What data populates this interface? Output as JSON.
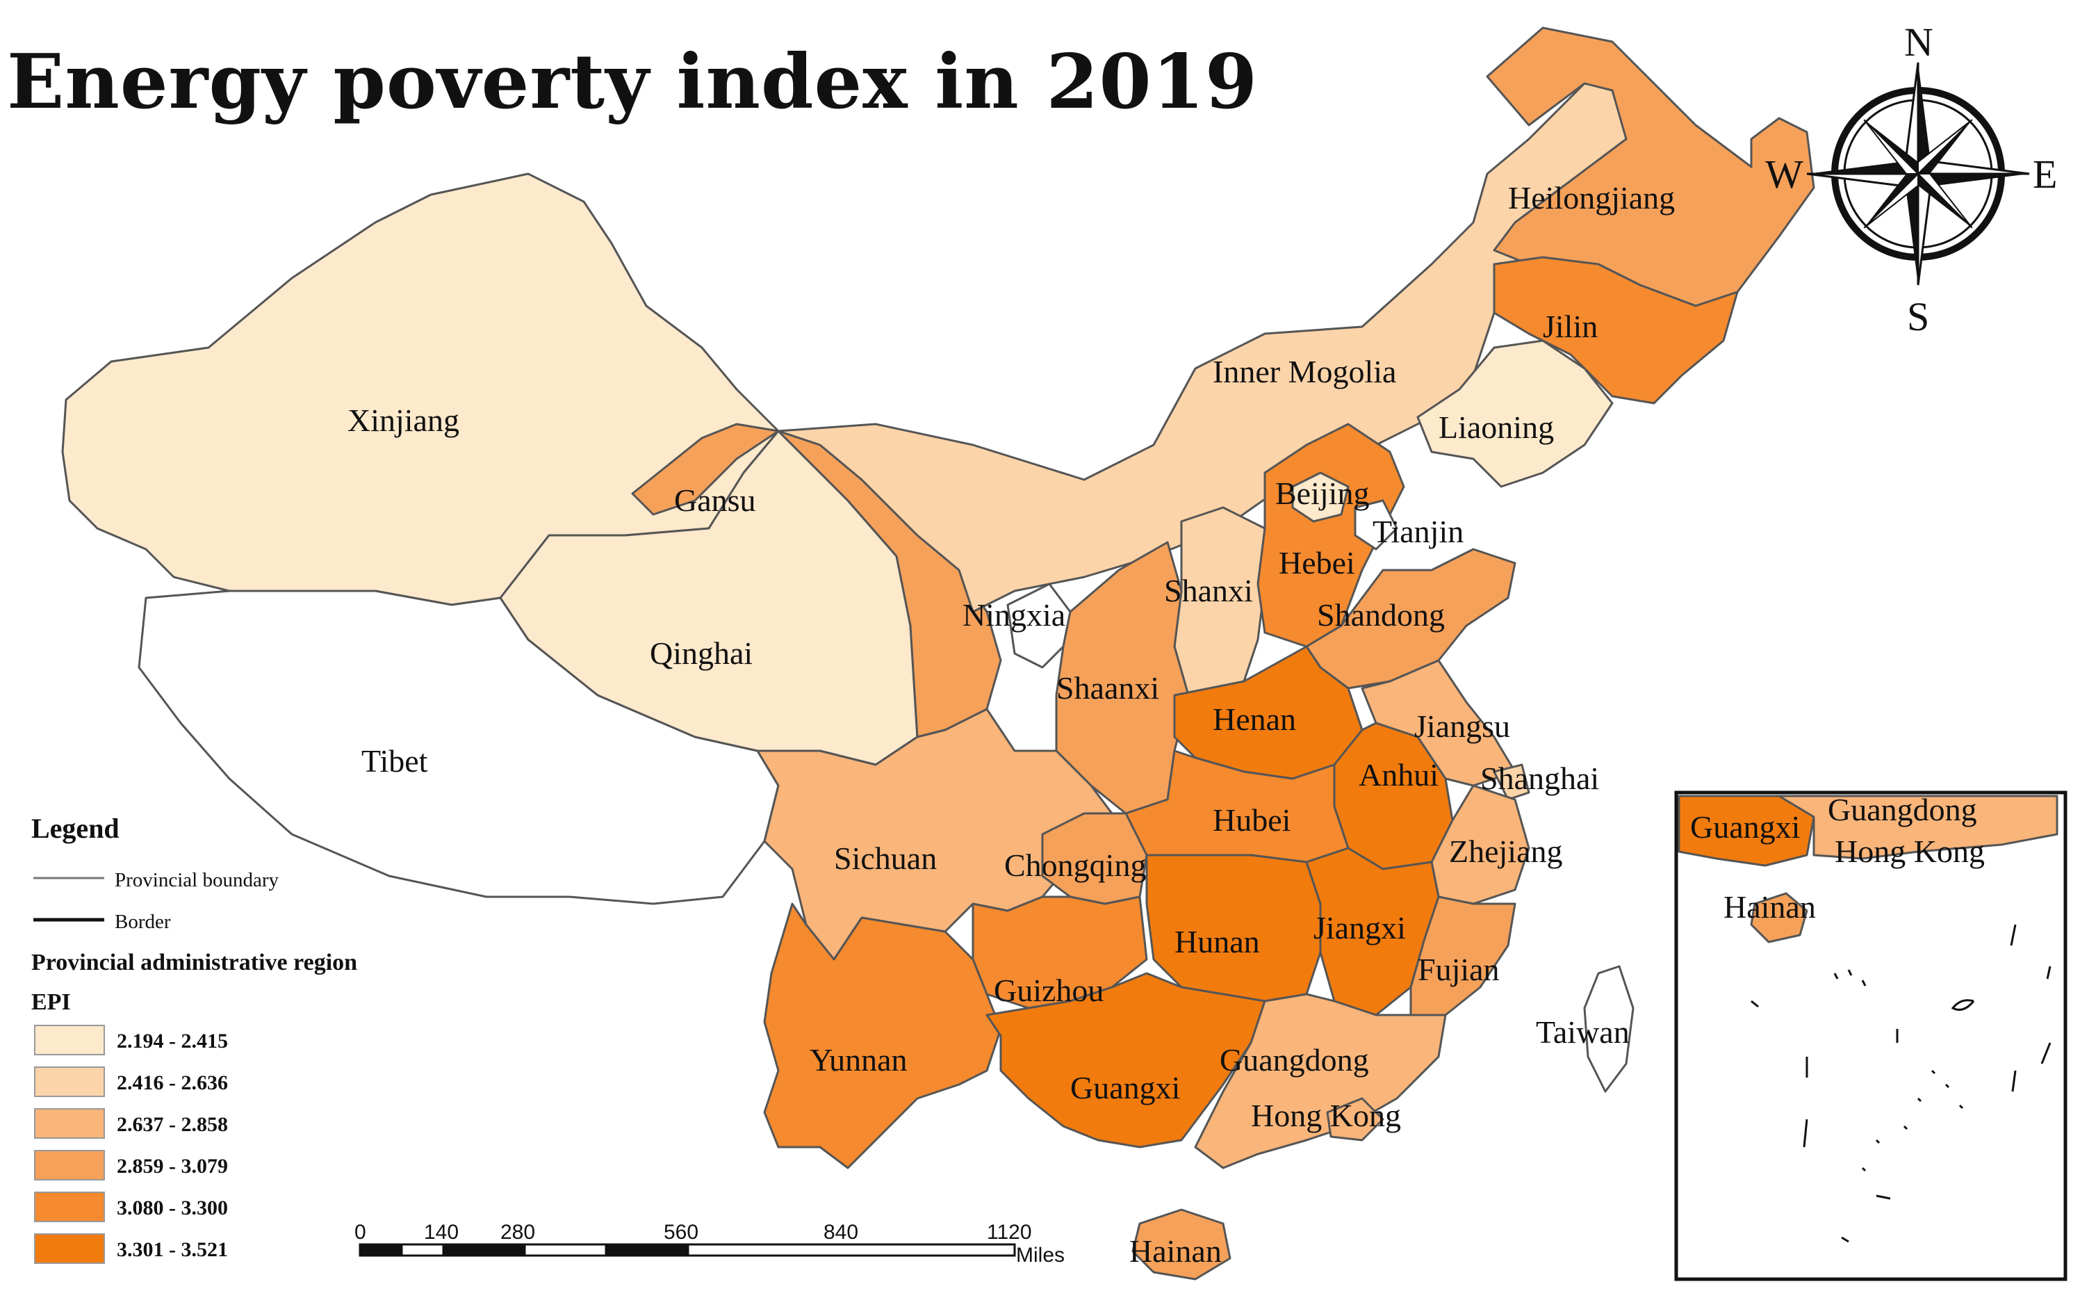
{
  "title": "Energy poverty index in 2019",
  "colors": {
    "c1": "#fde9cc",
    "c2": "#fcd4a9",
    "c3": "#f9b57a",
    "c4": "#f6a15a",
    "c5": "#f58a2e",
    "c6": "#f27b0e",
    "nodata": "#ffffff"
  },
  "provinces": [
    {
      "name": "Xinjiang",
      "class": "c1"
    },
    {
      "name": "Tibet",
      "class": "nodata"
    },
    {
      "name": "Qinghai",
      "class": "c1"
    },
    {
      "name": "Gansu",
      "class": "c4"
    },
    {
      "name": "Inner Mogolia",
      "class": "c2"
    },
    {
      "name": "Heilongjiang",
      "class": "c4"
    },
    {
      "name": "Jilin",
      "class": "c5"
    },
    {
      "name": "Liaoning",
      "class": "c1"
    },
    {
      "name": "Beijing",
      "class": "c1"
    },
    {
      "name": "Tianjin",
      "class": "nodata"
    },
    {
      "name": "Hebei",
      "class": "c5"
    },
    {
      "name": "Shanxi",
      "class": "c2"
    },
    {
      "name": "Shandong",
      "class": "c4"
    },
    {
      "name": "Ningxia",
      "class": "nodata"
    },
    {
      "name": "Shaanxi",
      "class": "c4"
    },
    {
      "name": "Henan",
      "class": "c6"
    },
    {
      "name": "Jiangsu",
      "class": "c3"
    },
    {
      "name": "Anhui",
      "class": "c6"
    },
    {
      "name": "Shanghai",
      "class": "c2"
    },
    {
      "name": "Hubei",
      "class": "c5"
    },
    {
      "name": "Sichuan",
      "class": "c3"
    },
    {
      "name": "Chongqing",
      "class": "c4"
    },
    {
      "name": "Zhejiang",
      "class": "c3"
    },
    {
      "name": "Hunan",
      "class": "c6"
    },
    {
      "name": "Jiangxi",
      "class": "c6"
    },
    {
      "name": "Fujian",
      "class": "c4"
    },
    {
      "name": "Guizhou",
      "class": "c5"
    },
    {
      "name": "Yunnan",
      "class": "c5"
    },
    {
      "name": "Guangxi",
      "class": "c6"
    },
    {
      "name": "Guangdong",
      "class": "c3"
    },
    {
      "name": "Hong Kong",
      "class": "c3"
    },
    {
      "name": "Taiwan",
      "class": "nodata"
    },
    {
      "name": "Hainan",
      "class": "c4"
    }
  ],
  "inset_labels": [
    "Guangxi",
    "Guangdong",
    "Hong Kong",
    "Hainan"
  ],
  "compass": {
    "n": "N",
    "s": "S",
    "e": "E",
    "w": "W"
  },
  "legend": {
    "title": "Legend",
    "boundary": "Provincial boundary",
    "border": "Border",
    "region_title": "Provincial administrative region",
    "field": "EPI",
    "classes": [
      {
        "range": "2.194 - 2.415",
        "class": "c1"
      },
      {
        "range": "2.416 - 2.636",
        "class": "c2"
      },
      {
        "range": "2.637 - 2.858",
        "class": "c3"
      },
      {
        "range": "2.859 - 3.079",
        "class": "c4"
      },
      {
        "range": "3.080 - 3.300",
        "class": "c5"
      },
      {
        "range": "3.301 - 3.521",
        "class": "c6"
      }
    ]
  },
  "scale": {
    "ticks": [
      "0",
      "140",
      "280",
      "560",
      "840",
      "1120"
    ],
    "unit": "Miles"
  }
}
